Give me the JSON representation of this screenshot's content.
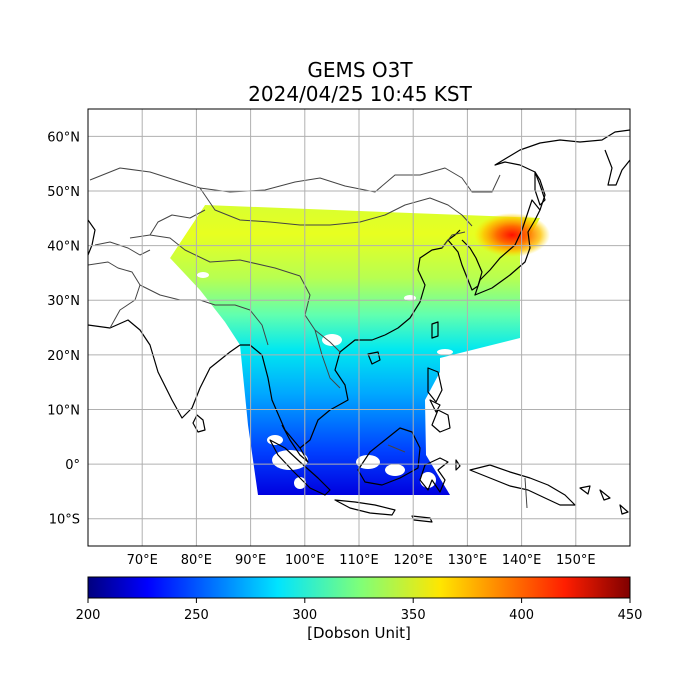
{
  "title": {
    "line1": "GEMS O3T",
    "line2": "2024/04/25 10:45 KST"
  },
  "map": {
    "lon_range": [
      60,
      160
    ],
    "lat_range": [
      -15,
      65
    ],
    "lat_ticks": [
      {
        "value": 60,
        "label": "60°N"
      },
      {
        "value": 50,
        "label": "50°N"
      },
      {
        "value": 40,
        "label": "40°N"
      },
      {
        "value": 30,
        "label": "30°N"
      },
      {
        "value": 20,
        "label": "20°N"
      },
      {
        "value": 10,
        "label": "10°N"
      },
      {
        "value": 0,
        "label": "0°"
      },
      {
        "value": -10,
        "label": "10°S"
      }
    ],
    "lon_ticks": [
      {
        "value": 70,
        "label": "70°E"
      },
      {
        "value": 80,
        "label": "80°E"
      },
      {
        "value": 90,
        "label": "90°E"
      },
      {
        "value": 100,
        "label": "100°E"
      },
      {
        "value": 110,
        "label": "110°E"
      },
      {
        "value": 120,
        "label": "120°E"
      },
      {
        "value": 130,
        "label": "130°E"
      },
      {
        "value": 140,
        "label": "140°E"
      },
      {
        "value": 150,
        "label": "150°E"
      }
    ],
    "gridlines": true,
    "colors": {
      "grid": "#b0b0b0",
      "coastline": "#000000",
      "borders": "#444444",
      "nodata": "#ffffff"
    }
  },
  "colorbar": {
    "min": 200,
    "max": 450,
    "ticks": [
      "200",
      "250",
      "300",
      "350",
      "400",
      "450"
    ],
    "label": "[Dobson Unit]",
    "colormap": "jet"
  }
}
